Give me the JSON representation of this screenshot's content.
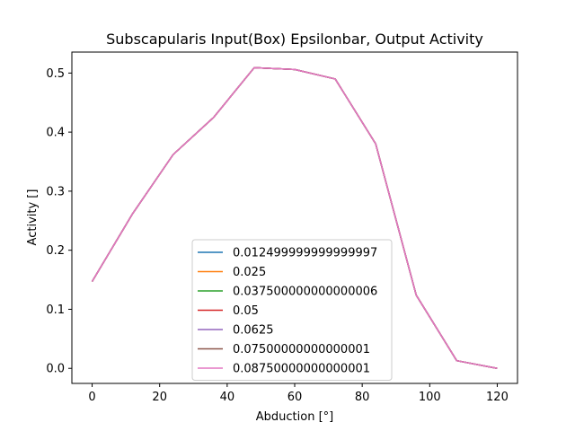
{
  "chart_data": {
    "type": "line",
    "title": "Subscapularis Input(Box) Epsilonbar, Output Activity",
    "xlabel": "Abduction [°]",
    "ylabel": "Activity []",
    "xlim": [
      -6,
      126
    ],
    "ylim": [
      -0.0255,
      0.5355
    ],
    "xticks": [
      0,
      20,
      40,
      60,
      80,
      100,
      120
    ],
    "xtick_labels": [
      "0",
      "20",
      "40",
      "60",
      "80",
      "100",
      "120"
    ],
    "yticks": [
      0.0,
      0.1,
      0.2,
      0.3,
      0.4,
      0.5
    ],
    "ytick_labels": [
      "0.0",
      "0.1",
      "0.2",
      "0.3",
      "0.4",
      "0.5"
    ],
    "grid": false,
    "legend_position": "lower-center",
    "x": [
      0,
      12,
      24,
      36,
      48,
      60,
      72,
      84,
      96,
      108,
      120
    ],
    "series": [
      {
        "name": "0.012499999999999997",
        "color": "#1f77b4",
        "values": [
          0.147,
          0.262,
          0.362,
          0.425,
          0.509,
          0.506,
          0.49,
          0.38,
          0.124,
          0.013,
          0.0
        ]
      },
      {
        "name": "0.025",
        "color": "#ff7f0e",
        "values": [
          0.147,
          0.262,
          0.362,
          0.425,
          0.509,
          0.506,
          0.49,
          0.38,
          0.124,
          0.013,
          0.0
        ]
      },
      {
        "name": "0.037500000000000006",
        "color": "#2ca02c",
        "values": [
          0.147,
          0.262,
          0.362,
          0.425,
          0.509,
          0.506,
          0.49,
          0.38,
          0.124,
          0.013,
          0.0
        ]
      },
      {
        "name": "0.05",
        "color": "#d62728",
        "values": [
          0.147,
          0.262,
          0.362,
          0.425,
          0.509,
          0.506,
          0.49,
          0.38,
          0.124,
          0.013,
          0.0
        ]
      },
      {
        "name": "0.0625",
        "color": "#9467bd",
        "values": [
          0.147,
          0.262,
          0.362,
          0.425,
          0.509,
          0.506,
          0.49,
          0.38,
          0.124,
          0.013,
          0.0
        ]
      },
      {
        "name": "0.07500000000000001",
        "color": "#8c564b",
        "values": [
          0.147,
          0.262,
          0.362,
          0.425,
          0.509,
          0.506,
          0.49,
          0.38,
          0.124,
          0.013,
          0.0
        ]
      },
      {
        "name": "0.08750000000000001",
        "color": "#e377c2",
        "values": [
          0.147,
          0.262,
          0.362,
          0.425,
          0.509,
          0.506,
          0.49,
          0.38,
          0.124,
          0.013,
          0.0
        ]
      }
    ]
  }
}
